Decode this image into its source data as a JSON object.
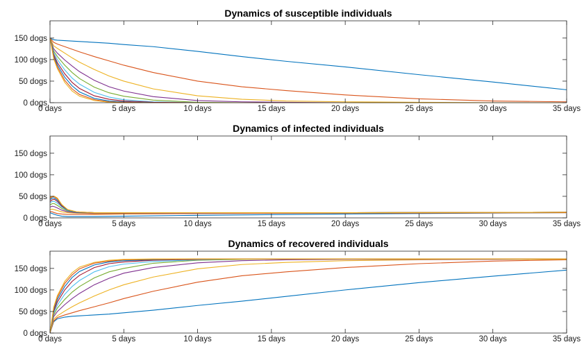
{
  "colors": [
    "#0072BD",
    "#D95319",
    "#EDB120",
    "#7E2F8E",
    "#77AC30",
    "#4DBEEE",
    "#A2142F",
    "#0072BD",
    "#D95319",
    "#EDB120"
  ],
  "chart_data": [
    {
      "type": "line",
      "title": "Dynamics of susceptible individuals",
      "xlim": [
        0,
        35
      ],
      "ylim": [
        0,
        190
      ],
      "xticks": [
        0,
        5,
        10,
        15,
        20,
        25,
        30,
        35
      ],
      "yticks": [
        0,
        50,
        100,
        150
      ],
      "xtick_labels": [
        "0 days",
        "5 days",
        "10 days",
        "15 days",
        "20 days",
        "25 days",
        "30 days",
        "35 days"
      ],
      "ytick_labels": [
        "0 dogs",
        "50 dogs",
        "100 dogs",
        "150 dogs"
      ],
      "grid": false,
      "x": [
        0,
        0.25,
        0.5,
        1,
        1.5,
        2,
        3,
        4,
        5,
        7,
        10,
        13,
        16,
        20,
        25,
        30,
        35
      ],
      "series": [
        {
          "values": [
            150,
            146,
            145,
            144,
            143,
            142,
            140,
            138,
            135,
            130,
            119,
            107,
            96,
            83,
            65,
            48,
            30
          ]
        },
        {
          "values": [
            150,
            140,
            136,
            130,
            124,
            118,
            107,
            97,
            87,
            70,
            50,
            37,
            28,
            18,
            9,
            4,
            2
          ]
        },
        {
          "values": [
            150,
            132,
            126,
            115,
            104,
            94,
            77,
            62,
            50,
            32,
            16,
            8,
            4,
            2,
            1,
            0,
            0
          ]
        },
        {
          "values": [
            150,
            125,
            115,
            99,
            85,
            72,
            52,
            37,
            27,
            14,
            5,
            2,
            1,
            0,
            0,
            0,
            0
          ]
        },
        {
          "values": [
            150,
            120,
            107,
            87,
            70,
            56,
            36,
            23,
            15,
            6,
            1,
            0,
            0,
            0,
            0,
            0,
            0
          ]
        },
        {
          "values": [
            150,
            116,
            100,
            76,
            57,
            43,
            24,
            13,
            7,
            2,
            0,
            0,
            0,
            0,
            0,
            0,
            0
          ]
        },
        {
          "values": [
            150,
            112,
            93,
            67,
            47,
            33,
            16,
            8,
            4,
            1,
            0,
            0,
            0,
            0,
            0,
            0,
            0
          ]
        },
        {
          "values": [
            150,
            108,
            88,
            59,
            39,
            25,
            10,
            4,
            2,
            0,
            0,
            0,
            0,
            0,
            0,
            0,
            0
          ]
        },
        {
          "values": [
            150,
            105,
            83,
            52,
            32,
            19,
            7,
            2,
            1,
            0,
            0,
            0,
            0,
            0,
            0,
            0,
            0
          ]
        },
        {
          "values": [
            150,
            102,
            79,
            47,
            27,
            15,
            5,
            1,
            0,
            0,
            0,
            0,
            0,
            0,
            0,
            0,
            0
          ]
        }
      ]
    },
    {
      "type": "line",
      "title": "Dynamics of infected individuals",
      "xlim": [
        0,
        35
      ],
      "ylim": [
        0,
        190
      ],
      "xticks": [
        0,
        5,
        10,
        15,
        20,
        25,
        30,
        35
      ],
      "yticks": [
        0,
        50,
        100,
        150
      ],
      "xtick_labels": [
        "0 days",
        "5 days",
        "10 days",
        "15 days",
        "20 days",
        "25 days",
        "30 days",
        "35 days"
      ],
      "ytick_labels": [
        "0 dogs",
        "50 dogs",
        "100 dogs",
        "150 dogs"
      ],
      "grid": false,
      "x": [
        0,
        0.15,
        0.3,
        0.5,
        0.8,
        1.2,
        1.8,
        3,
        5,
        10,
        20,
        35
      ],
      "series": [
        {
          "values": [
            12,
            10,
            8,
            6,
            4,
            3,
            3,
            3,
            4,
            6,
            9,
            12
          ]
        },
        {
          "values": [
            15,
            14,
            12,
            10,
            9,
            8,
            8,
            8,
            9,
            10,
            11,
            12
          ]
        },
        {
          "values": [
            20,
            20,
            19,
            17,
            14,
            12,
            11,
            10,
            10,
            11,
            12,
            13
          ]
        },
        {
          "values": [
            25,
            27,
            26,
            23,
            18,
            14,
            12,
            11,
            11,
            11,
            12,
            13
          ]
        },
        {
          "values": [
            30,
            33,
            33,
            29,
            22,
            16,
            13,
            12,
            12,
            12,
            12,
            13
          ]
        },
        {
          "values": [
            35,
            38,
            38,
            34,
            25,
            17,
            13,
            12,
            12,
            12,
            12,
            13
          ]
        },
        {
          "values": [
            38,
            42,
            43,
            38,
            27,
            18,
            13,
            12,
            12,
            12,
            12,
            13
          ]
        },
        {
          "values": [
            42,
            46,
            46,
            41,
            29,
            18,
            13,
            12,
            12,
            12,
            12,
            13
          ]
        },
        {
          "values": [
            45,
            49,
            49,
            44,
            30,
            19,
            14,
            12,
            12,
            12,
            12,
            13
          ]
        },
        {
          "values": [
            48,
            50,
            50,
            46,
            31,
            19,
            14,
            12,
            12,
            12,
            12,
            13
          ]
        }
      ]
    },
    {
      "type": "line",
      "title": "Dynamics of recovered individuals",
      "xlim": [
        0,
        35
      ],
      "ylim": [
        0,
        190
      ],
      "xticks": [
        0,
        5,
        10,
        15,
        20,
        25,
        30,
        35
      ],
      "yticks": [
        0,
        50,
        100,
        150
      ],
      "xtick_labels": [
        "0 days",
        "5 days",
        "10 days",
        "15 days",
        "20 days",
        "25 days",
        "30 days",
        "35 days"
      ],
      "ytick_labels": [
        "0 dogs",
        "50 dogs",
        "100 dogs",
        "150 dogs"
      ],
      "grid": false,
      "x": [
        0,
        0.25,
        0.5,
        1,
        1.5,
        2,
        3,
        4,
        5,
        7,
        10,
        13,
        16,
        20,
        25,
        30,
        35
      ],
      "series": [
        {
          "values": [
            0,
            26,
            33,
            37,
            39,
            40,
            42,
            44,
            47,
            53,
            64,
            74,
            85,
            100,
            117,
            132,
            146
          ]
        },
        {
          "values": [
            0,
            28,
            36,
            42,
            47,
            52,
            61,
            70,
            80,
            97,
            118,
            133,
            142,
            152,
            161,
            167,
            170
          ]
        },
        {
          "values": [
            0,
            32,
            40,
            51,
            61,
            70,
            86,
            100,
            112,
            130,
            149,
            159,
            164,
            168,
            170,
            171,
            171
          ]
        },
        {
          "values": [
            0,
            38,
            50,
            66,
            80,
            92,
            112,
            127,
            139,
            152,
            163,
            168,
            170,
            171,
            171,
            171,
            172
          ]
        },
        {
          "values": [
            0,
            42,
            58,
            78,
            95,
            108,
            128,
            142,
            150,
            162,
            169,
            171,
            172,
            172,
            172,
            172,
            172
          ]
        },
        {
          "values": [
            0,
            46,
            65,
            90,
            108,
            122,
            142,
            154,
            160,
            166,
            170,
            172,
            172,
            172,
            172,
            172,
            172
          ]
        },
        {
          "values": [
            0,
            50,
            72,
            100,
            120,
            134,
            152,
            161,
            165,
            169,
            171,
            172,
            172,
            172,
            172,
            172,
            172
          ]
        },
        {
          "values": [
            0,
            54,
            78,
            108,
            129,
            143,
            158,
            165,
            168,
            170,
            172,
            172,
            172,
            172,
            172,
            172,
            172
          ]
        },
        {
          "values": [
            0,
            57,
            83,
            115,
            135,
            149,
            162,
            167,
            170,
            171,
            172,
            172,
            172,
            172,
            172,
            172,
            172
          ]
        },
        {
          "values": [
            0,
            60,
            87,
            120,
            140,
            153,
            164,
            169,
            171,
            172,
            172,
            172,
            172,
            172,
            172,
            172,
            172
          ]
        }
      ]
    }
  ]
}
